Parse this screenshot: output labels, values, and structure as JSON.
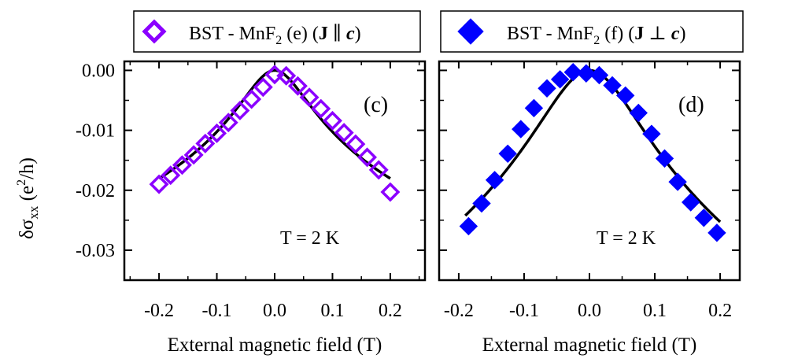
{
  "chart_data": [
    {
      "type": "scatter",
      "panel_label": "(c)",
      "legend": {
        "marker": "open-diamond",
        "label_prefix": "BST - MnF",
        "label_sub": "2",
        "label_mid": " (e) (",
        "label_bold": "J",
        "label_op": " ∥ ",
        "label_ital": "c",
        "label_end": ")"
      },
      "annotation": "T = 2 K",
      "xlabel": "External magnetic field (T)",
      "ylabel_main": "δσ",
      "ylabel_sub": "xx",
      "ylabel_rest": " (e",
      "ylabel_sup": "2",
      "ylabel_end": "/h)",
      "xlim": [
        -0.26,
        0.26
      ],
      "ylim": [
        -0.035,
        0.0015
      ],
      "xticks": [
        -0.2,
        -0.1,
        0.0,
        0.1,
        0.2
      ],
      "xtick_labels": [
        "-0.2",
        "-0.1",
        "0.0",
        "0.1",
        "0.2"
      ],
      "yticks": [
        0.0,
        -0.01,
        -0.02,
        -0.03
      ],
      "ytick_labels": [
        "0.00",
        "-0.01",
        "-0.02",
        "-0.03"
      ],
      "marker_color": "#8b00ff",
      "fit_color": "#000000",
      "series": [
        {
          "name": "data",
          "x": [
            -0.2,
            -0.18,
            -0.16,
            -0.14,
            -0.12,
            -0.1,
            -0.08,
            -0.06,
            -0.04,
            -0.02,
            0.0,
            0.02,
            0.04,
            0.06,
            0.08,
            0.1,
            0.12,
            0.14,
            0.16,
            0.18,
            0.2
          ],
          "values": [
            -0.019,
            -0.0175,
            -0.0158,
            -0.0141,
            -0.0122,
            -0.0105,
            -0.0087,
            -0.0067,
            -0.0048,
            -0.0028,
            -0.0007,
            -0.0009,
            -0.0026,
            -0.0045,
            -0.0064,
            -0.0084,
            -0.0104,
            -0.0123,
            -0.0145,
            -0.0166,
            -0.0203
          ]
        },
        {
          "name": "fit",
          "function": "logcurve",
          "B": 0.05,
          "x_range": [
            -0.2,
            0.2
          ]
        }
      ]
    },
    {
      "type": "scatter",
      "panel_label": "(d)",
      "legend": {
        "marker": "filled-diamond",
        "label_prefix": "BST - MnF",
        "label_sub": "2",
        "label_mid": " (f) (",
        "label_bold": "J",
        "label_op": " ⊥ ",
        "label_ital": "c",
        "label_end": ")"
      },
      "annotation": "T = 2 K",
      "xlabel": "External magnetic field (T)",
      "xlim": [
        -0.23,
        0.23
      ],
      "ylim": [
        -0.035,
        0.0015
      ],
      "xticks": [
        -0.2,
        -0.1,
        0.0,
        0.1,
        0.2
      ],
      "xtick_labels": [
        "-0.2",
        "-0.1",
        "0.0",
        "0.1",
        "0.2"
      ],
      "yticks": [
        0.0,
        -0.01,
        -0.02,
        -0.03
      ],
      "marker_color": "#0000ff",
      "fit_color": "#000000",
      "series": [
        {
          "name": "data",
          "x": [
            -0.185,
            -0.165,
            -0.145,
            -0.125,
            -0.105,
            -0.085,
            -0.065,
            -0.045,
            -0.025,
            -0.005,
            0.015,
            0.035,
            0.055,
            0.075,
            0.095,
            0.115,
            0.135,
            0.155,
            0.175,
            0.195
          ],
          "values": [
            -0.026,
            -0.0222,
            -0.0183,
            -0.0139,
            -0.0098,
            -0.0063,
            -0.003,
            -0.0015,
            -0.0003,
            -0.0005,
            -0.0008,
            -0.0025,
            -0.0042,
            -0.0071,
            -0.0106,
            -0.0147,
            -0.0186,
            -0.022,
            -0.0246,
            -0.0271
          ]
        },
        {
          "name": "fit",
          "function": "logcurve",
          "B": 0.07,
          "x_range": [
            -0.19,
            0.2
          ]
        }
      ]
    }
  ]
}
